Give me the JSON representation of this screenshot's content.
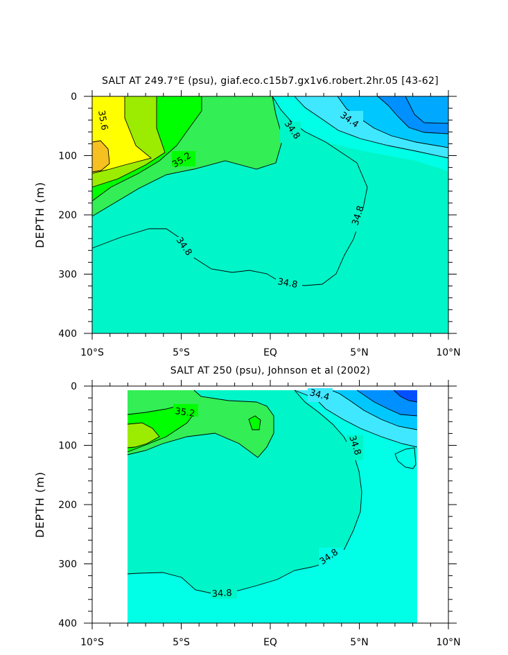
{
  "chart_data": [
    {
      "type": "contour",
      "title": "SALT AT 249.7°E (psu), giaf.eco.c15b7.gx1v6.robert.2hr.05 [43-62]",
      "ylabel": "DEPTH (m)",
      "xlabel": "",
      "xlim": [
        -10,
        10
      ],
      "ylim": [
        400,
        0
      ],
      "xticks": [
        "10°S",
        "5°S",
        "EQ",
        "5°N",
        "10°N"
      ],
      "yticks": [
        "0",
        "100",
        "200",
        "300",
        "400"
      ],
      "contour_labels": [
        "35.6",
        "35.2",
        "34.8",
        "34.8",
        "34.8",
        "34.8",
        "34.4"
      ],
      "levels": [
        34.0,
        34.2,
        34.4,
        34.6,
        34.8,
        35.0,
        35.2,
        35.4,
        35.6,
        35.8
      ],
      "colors": {
        "35.8": "#f6c020",
        "35.6": "#ffff00",
        "35.4": "#9bec00",
        "35.2": "#00ff00",
        "35.0": "#33ee55",
        "34.8": "#00f5c8",
        "34.6": "#00ffe6",
        "34.4": "#40e8ff",
        "34.2": "#00c8ff",
        "34.0": "#0090ff"
      }
    },
    {
      "type": "contour",
      "title": "SALT AT 250 (psu), Johnson et al (2002)",
      "ylabel": "DEPTH (m)",
      "xlabel": "",
      "xlim": [
        -10,
        10
      ],
      "ylim": [
        400,
        0
      ],
      "data_extent_x": [
        -8,
        8.2
      ],
      "data_extent_depth": [
        10,
        400
      ],
      "xticks": [
        "10°S",
        "5°S",
        "EQ",
        "5°N",
        "10°N"
      ],
      "yticks": [
        "0",
        "100",
        "200",
        "300",
        "400"
      ],
      "contour_labels": [
        "35.2",
        "34.4",
        "34.8",
        "34.8",
        "34.8"
      ],
      "levels": [
        33.8,
        34.0,
        34.2,
        34.4,
        34.6,
        34.8,
        35.0,
        35.2,
        35.4
      ],
      "colors": {
        "35.4": "#9bec00",
        "35.2": "#00ff00",
        "35.0": "#33ee55",
        "34.8": "#00f5c8",
        "34.6": "#00ffe6",
        "34.4": "#40e8ff",
        "34.2": "#00c8ff",
        "34.0": "#0090ff",
        "33.8": "#0050ff"
      }
    }
  ]
}
